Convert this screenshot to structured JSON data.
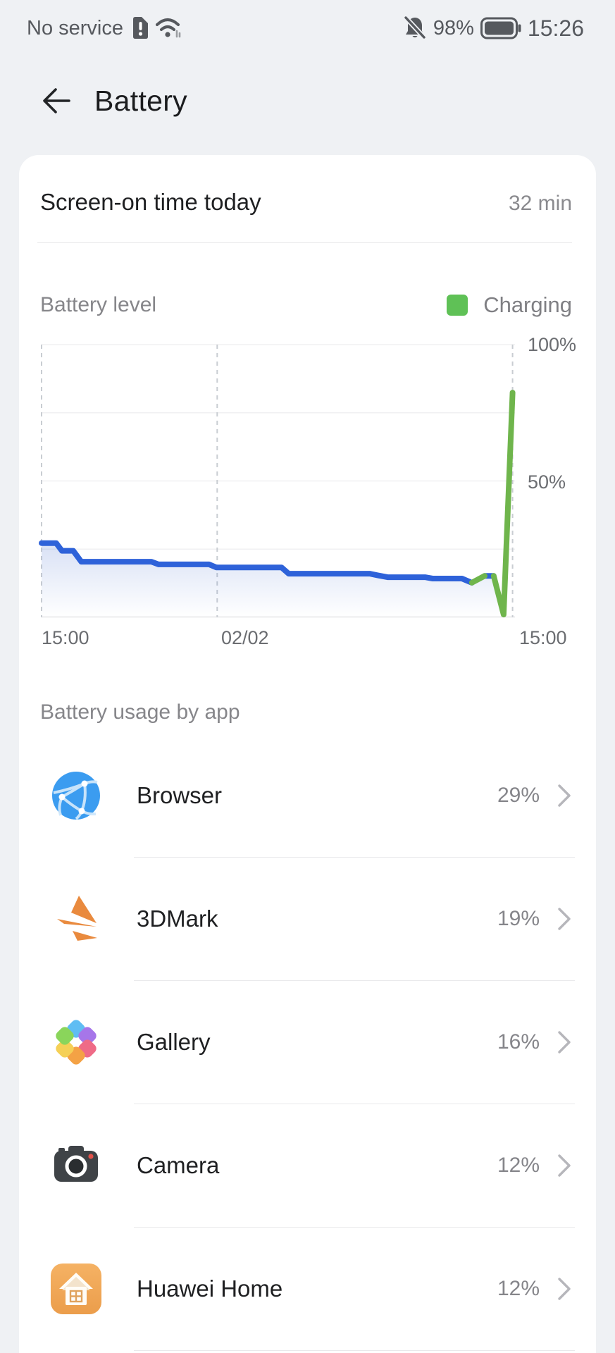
{
  "status_bar": {
    "carrier": "No service",
    "battery_percent": "98%",
    "time": "15:26",
    "icons": [
      "sim-alert-icon",
      "wifi-icon",
      "notifications-off-icon",
      "battery-icon"
    ]
  },
  "header": {
    "title": "Battery"
  },
  "screen_on": {
    "label": "Screen-on time today",
    "value": "32 min"
  },
  "chart_section": {
    "title": "Battery level",
    "legend": {
      "label": "Charging",
      "color": "#5fc156"
    }
  },
  "chart_data": {
    "type": "line",
    "title": "Battery level",
    "x_axis": {
      "ticks": [
        "15:00",
        "02/02",
        "15:00"
      ],
      "tick_positions": [
        0,
        0.371,
        0.995
      ],
      "note": "x is fraction of 24.4h window from 15:00 on 02/01 to 15:26 on 02/02"
    },
    "y_axis": {
      "unit": "%",
      "range": [
        0,
        100
      ],
      "gridlines": [
        25,
        50,
        75,
        100
      ],
      "ticks": [
        {
          "label": "100%",
          "value": 100
        },
        {
          "label": "50%",
          "value": 50
        }
      ]
    },
    "series": [
      {
        "name": "battery-level-discharging",
        "color": "#2e62d9",
        "segments": [
          [
            [
              0,
              27.2
            ],
            [
              0.031,
              27.2
            ],
            [
              0.043,
              24.4
            ],
            [
              0.067,
              24.4
            ],
            [
              0.084,
              20.4
            ],
            [
              0.232,
              20.4
            ],
            [
              0.247,
              19.4
            ],
            [
              0.354,
              19.4
            ],
            [
              0.369,
              18.3
            ],
            [
              0.507,
              18.3
            ],
            [
              0.522,
              16.0
            ],
            [
              0.693,
              16.0
            ],
            [
              0.71,
              15.4
            ],
            [
              0.731,
              14.7
            ],
            [
              0.81,
              14.7
            ],
            [
              0.826,
              14.2
            ],
            [
              0.888,
              14.2
            ],
            [
              0.909,
              12.7
            ]
          ],
          [
            [
              0.936,
              15.2
            ],
            [
              0.955,
              15.2
            ]
          ]
        ]
      },
      {
        "name": "battery-level-charging",
        "color": "#6fb54c",
        "segments": [
          [
            [
              0.909,
              12.7
            ],
            [
              0.936,
              15.2
            ]
          ],
          [
            [
              0.955,
              15.2
            ],
            [
              0.976,
              1.0
            ],
            [
              0.995,
              82.4
            ]
          ]
        ]
      }
    ],
    "area_points": [
      [
        0,
        27.2
      ],
      [
        0.031,
        27.2
      ],
      [
        0.043,
        24.4
      ],
      [
        0.067,
        24.4
      ],
      [
        0.084,
        20.4
      ],
      [
        0.232,
        20.4
      ],
      [
        0.247,
        19.4
      ],
      [
        0.354,
        19.4
      ],
      [
        0.369,
        18.3
      ],
      [
        0.507,
        18.3
      ],
      [
        0.522,
        16.0
      ],
      [
        0.693,
        16.0
      ],
      [
        0.71,
        15.4
      ],
      [
        0.731,
        14.7
      ],
      [
        0.81,
        14.7
      ],
      [
        0.826,
        14.2
      ],
      [
        0.888,
        14.2
      ],
      [
        0.909,
        12.7
      ],
      [
        0.936,
        15.2
      ],
      [
        0.955,
        15.2
      ],
      [
        0.976,
        1.0
      ]
    ],
    "area_fill": {
      "from": "rgba(80,118,210,0.22)",
      "to": "rgba(80,118,210,0)"
    },
    "grid_color": "#f0f0f2",
    "dash_color": "#c9cdd2",
    "baseline_color": "#e6e6e8"
  },
  "usage": {
    "heading": "Battery usage by app",
    "apps": [
      {
        "name": "Browser",
        "percent": "29%",
        "icon": "browser-globe-icon"
      },
      {
        "name": "3DMark",
        "percent": "19%",
        "icon": "3dmark-wing-icon"
      },
      {
        "name": "Gallery",
        "percent": "16%",
        "icon": "gallery-flower-icon"
      },
      {
        "name": "Camera",
        "percent": "12%",
        "icon": "camera-icon"
      },
      {
        "name": "Huawei Home",
        "percent": "12%",
        "icon": "huawei-home-icon"
      }
    ]
  }
}
